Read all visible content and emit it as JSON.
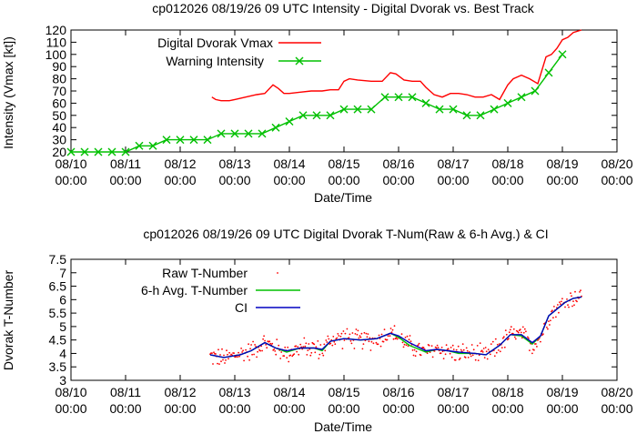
{
  "chart_data": [
    {
      "type": "line",
      "title": "cp012026 08/19/26  09 UTC Intensity - Digital Dvorak vs. Best Track",
      "xlabel": "Date/Time",
      "ylabel": "Intensity (Vmax [kt])",
      "ylim": [
        20,
        120
      ],
      "yticks": [
        20,
        30,
        40,
        50,
        60,
        70,
        80,
        90,
        100,
        110,
        120
      ],
      "xlim": [
        0,
        10
      ],
      "xticks": [
        {
          "x": 0,
          "l1": "08/10",
          "l2": "00:00"
        },
        {
          "x": 1,
          "l1": "08/11",
          "l2": "00:00"
        },
        {
          "x": 2,
          "l1": "08/12",
          "l2": "00:00"
        },
        {
          "x": 3,
          "l1": "08/13",
          "l2": "00:00"
        },
        {
          "x": 4,
          "l1": "08/14",
          "l2": "00:00"
        },
        {
          "x": 5,
          "l1": "08/15",
          "l2": "00:00"
        },
        {
          "x": 6,
          "l1": "08/16",
          "l2": "00:00"
        },
        {
          "x": 7,
          "l1": "08/17",
          "l2": "00:00"
        },
        {
          "x": 8,
          "l1": "08/18",
          "l2": "00:00"
        },
        {
          "x": 9,
          "l1": "08/19",
          "l2": "00:00"
        },
        {
          "x": 10,
          "l1": "08/20",
          "l2": "00:00"
        }
      ],
      "legend_position": "top-left",
      "series": [
        {
          "name": "Digital Dvorak Vmax",
          "color": "#ff0000",
          "marker": "none",
          "points": [
            [
              2.58,
              65
            ],
            [
              2.65,
              63
            ],
            [
              2.75,
              62
            ],
            [
              2.9,
              62
            ],
            [
              3.0,
              63
            ],
            [
              3.2,
              65
            ],
            [
              3.4,
              67
            ],
            [
              3.55,
              68
            ],
            [
              3.7,
              75
            ],
            [
              3.8,
              72
            ],
            [
              3.9,
              68
            ],
            [
              4.0,
              68
            ],
            [
              4.2,
              69
            ],
            [
              4.4,
              70
            ],
            [
              4.6,
              70
            ],
            [
              4.75,
              71
            ],
            [
              4.9,
              71
            ],
            [
              5.0,
              78
            ],
            [
              5.1,
              80
            ],
            [
              5.25,
              79
            ],
            [
              5.5,
              78
            ],
            [
              5.7,
              78
            ],
            [
              5.85,
              85
            ],
            [
              5.95,
              84
            ],
            [
              6.1,
              79
            ],
            [
              6.25,
              78
            ],
            [
              6.4,
              78
            ],
            [
              6.5,
              73
            ],
            [
              6.65,
              67
            ],
            [
              6.8,
              65
            ],
            [
              6.95,
              68
            ],
            [
              7.1,
              68
            ],
            [
              7.25,
              67
            ],
            [
              7.4,
              65
            ],
            [
              7.55,
              65
            ],
            [
              7.7,
              67
            ],
            [
              7.85,
              63
            ],
            [
              8.0,
              75
            ],
            [
              8.1,
              80
            ],
            [
              8.25,
              83
            ],
            [
              8.4,
              80
            ],
            [
              8.55,
              76
            ],
            [
              8.7,
              98
            ],
            [
              8.8,
              100
            ],
            [
              8.9,
              105
            ],
            [
              9.0,
              112
            ],
            [
              9.1,
              114
            ],
            [
              9.2,
              118
            ],
            [
              9.35,
              120
            ]
          ]
        },
        {
          "name": "Warning Intensity",
          "color": "#00c000",
          "marker": "x",
          "points": [
            [
              0,
              20
            ],
            [
              0.25,
              20
            ],
            [
              0.5,
              20
            ],
            [
              0.75,
              20
            ],
            [
              1,
              20
            ],
            [
              1.25,
              25
            ],
            [
              1.5,
              25
            ],
            [
              1.75,
              30
            ],
            [
              2,
              30
            ],
            [
              2.25,
              30
            ],
            [
              2.5,
              30
            ],
            [
              2.75,
              35
            ],
            [
              3,
              35
            ],
            [
              3.25,
              35
            ],
            [
              3.5,
              35
            ],
            [
              3.75,
              40
            ],
            [
              4,
              45
            ],
            [
              4.25,
              50
            ],
            [
              4.5,
              50
            ],
            [
              4.75,
              50
            ],
            [
              5,
              55
            ],
            [
              5.25,
              55
            ],
            [
              5.5,
              55
            ],
            [
              5.75,
              65
            ],
            [
              6,
              65
            ],
            [
              6.25,
              65
            ],
            [
              6.5,
              60
            ],
            [
              6.75,
              55
            ],
            [
              7,
              55
            ],
            [
              7.25,
              50
            ],
            [
              7.5,
              50
            ],
            [
              7.75,
              55
            ],
            [
              8,
              60
            ],
            [
              8.25,
              65
            ],
            [
              8.5,
              70
            ],
            [
              8.75,
              85
            ],
            [
              9,
              100
            ]
          ]
        }
      ]
    },
    {
      "type": "line",
      "title": "cp012026 08/19/26  09 UTC Digital Dvorak T-Num(Raw & 6-h Avg.) & CI",
      "xlabel": "Date/Time",
      "ylabel": "Dvorak T-Number",
      "ylim": [
        3,
        7.5
      ],
      "yticks": [
        3,
        3.5,
        4,
        4.5,
        5,
        5.5,
        6,
        6.5,
        7,
        7.5
      ],
      "xlim": [
        0,
        10
      ],
      "legend_position": "top-left",
      "series": [
        {
          "name": "Raw T-Number",
          "color": "#ff0000",
          "marker": "dot",
          "anchors": [
            [
              2.55,
              3.9
            ],
            [
              2.8,
              3.8
            ],
            [
              3.1,
              4.0
            ],
            [
              3.3,
              4.1
            ],
            [
              3.55,
              4.4
            ],
            [
              3.75,
              4.2
            ],
            [
              3.95,
              4.0
            ],
            [
              4.2,
              4.2
            ],
            [
              4.45,
              4.2
            ],
            [
              4.6,
              4.1
            ],
            [
              4.75,
              4.5
            ],
            [
              5.0,
              4.6
            ],
            [
              5.3,
              4.5
            ],
            [
              5.6,
              4.5
            ],
            [
              5.85,
              4.8
            ],
            [
              6.0,
              4.6
            ],
            [
              6.2,
              4.3
            ],
            [
              6.5,
              4.0
            ],
            [
              6.7,
              4.2
            ],
            [
              6.9,
              4.1
            ],
            [
              7.1,
              4.0
            ],
            [
              7.4,
              4.0
            ],
            [
              7.6,
              3.9
            ],
            [
              7.85,
              4.3
            ],
            [
              8.05,
              4.7
            ],
            [
              8.25,
              4.7
            ],
            [
              8.45,
              4.3
            ],
            [
              8.6,
              4.6
            ],
            [
              8.75,
              5.4
            ],
            [
              8.9,
              5.7
            ],
            [
              9.05,
              5.9
            ],
            [
              9.2,
              6.1
            ],
            [
              9.35,
              6.1
            ]
          ],
          "jitter": 0.3,
          "density_per_day": 60
        },
        {
          "name": "6-h Avg. T-Number",
          "color": "#00c000",
          "marker": "none",
          "points": [
            [
              2.55,
              3.95
            ],
            [
              2.8,
              3.85
            ],
            [
              3.1,
              3.95
            ],
            [
              3.3,
              4.1
            ],
            [
              3.55,
              4.4
            ],
            [
              3.75,
              4.2
            ],
            [
              3.95,
              4.05
            ],
            [
              4.2,
              4.2
            ],
            [
              4.45,
              4.2
            ],
            [
              4.6,
              4.1
            ],
            [
              4.75,
              4.45
            ],
            [
              5.0,
              4.55
            ],
            [
              5.3,
              4.5
            ],
            [
              5.6,
              4.55
            ],
            [
              5.85,
              4.75
            ],
            [
              6.0,
              4.6
            ],
            [
              6.2,
              4.3
            ],
            [
              6.5,
              4.05
            ],
            [
              6.7,
              4.15
            ],
            [
              6.9,
              4.1
            ],
            [
              7.1,
              4.0
            ],
            [
              7.4,
              4.0
            ],
            [
              7.6,
              3.95
            ],
            [
              7.85,
              4.3
            ],
            [
              8.05,
              4.7
            ],
            [
              8.25,
              4.65
            ],
            [
              8.45,
              4.35
            ],
            [
              8.6,
              4.65
            ],
            [
              8.75,
              5.4
            ],
            [
              8.9,
              5.65
            ],
            [
              9.05,
              5.9
            ],
            [
              9.2,
              6.05
            ],
            [
              9.35,
              6.1
            ]
          ]
        },
        {
          "name": "CI",
          "color": "#0000c0",
          "marker": "none",
          "points": [
            [
              2.55,
              3.95
            ],
            [
              2.8,
              3.85
            ],
            [
              3.1,
              3.95
            ],
            [
              3.3,
              4.1
            ],
            [
              3.55,
              4.4
            ],
            [
              3.75,
              4.2
            ],
            [
              3.95,
              4.1
            ],
            [
              4.2,
              4.2
            ],
            [
              4.45,
              4.2
            ],
            [
              4.6,
              4.15
            ],
            [
              4.75,
              4.45
            ],
            [
              5.0,
              4.55
            ],
            [
              5.3,
              4.5
            ],
            [
              5.6,
              4.55
            ],
            [
              5.85,
              4.75
            ],
            [
              6.0,
              4.65
            ],
            [
              6.2,
              4.4
            ],
            [
              6.5,
              4.1
            ],
            [
              6.7,
              4.15
            ],
            [
              6.9,
              4.1
            ],
            [
              7.1,
              4.05
            ],
            [
              7.4,
              4.0
            ],
            [
              7.6,
              3.95
            ],
            [
              7.85,
              4.3
            ],
            [
              8.05,
              4.7
            ],
            [
              8.25,
              4.7
            ],
            [
              8.45,
              4.4
            ],
            [
              8.6,
              4.65
            ],
            [
              8.75,
              5.4
            ],
            [
              8.9,
              5.65
            ],
            [
              9.05,
              5.9
            ],
            [
              9.2,
              6.05
            ],
            [
              9.35,
              6.1
            ]
          ]
        }
      ]
    }
  ]
}
